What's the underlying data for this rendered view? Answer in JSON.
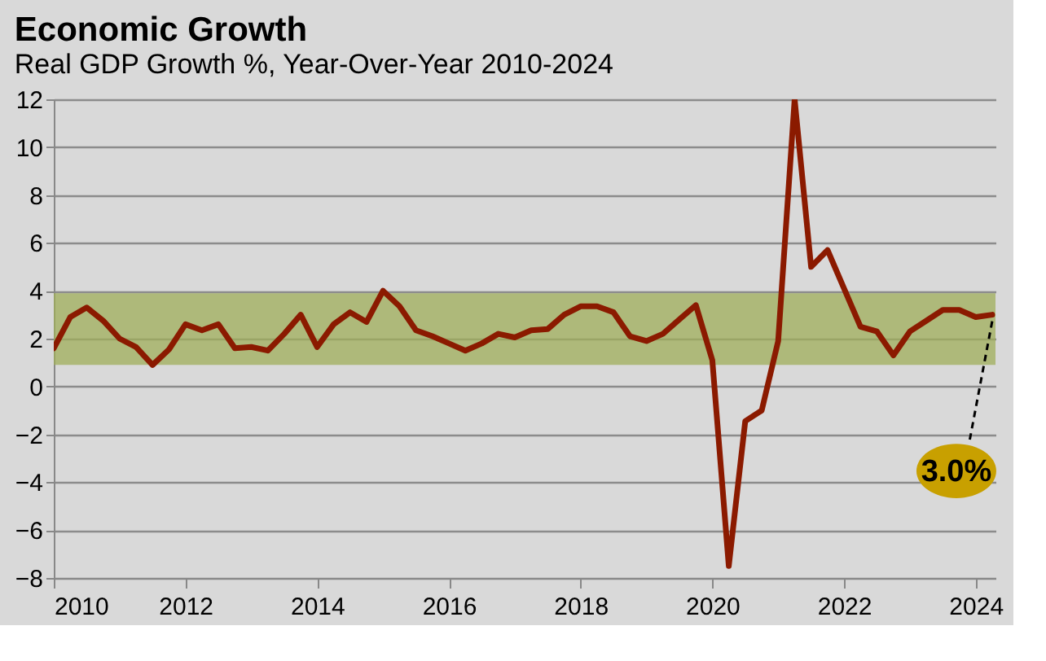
{
  "chart_data": {
    "type": "line",
    "title": "Economic Growth",
    "subtitle": "Real GDP Growth %, Year-Over-Year 2010-2024",
    "x": [
      2010.0,
      2010.25,
      2010.5,
      2010.75,
      2011.0,
      2011.25,
      2011.5,
      2011.75,
      2012.0,
      2012.25,
      2012.5,
      2012.75,
      2013.0,
      2013.25,
      2013.5,
      2013.75,
      2014.0,
      2014.25,
      2014.5,
      2014.75,
      2015.0,
      2015.25,
      2015.5,
      2015.75,
      2016.0,
      2016.25,
      2016.5,
      2016.75,
      2017.0,
      2017.25,
      2017.5,
      2017.75,
      2018.0,
      2018.25,
      2018.5,
      2018.75,
      2019.0,
      2019.25,
      2019.5,
      2019.75,
      2020.0,
      2020.25,
      2020.5,
      2020.75,
      2021.0,
      2021.25,
      2021.5,
      2021.75,
      2022.0,
      2022.25,
      2022.5,
      2022.75,
      2023.0,
      2023.25,
      2023.5,
      2023.75,
      2024.0,
      2024.25
    ],
    "values": [
      1.6,
      2.9,
      3.3,
      2.75,
      2.0,
      1.65,
      0.9,
      1.55,
      2.6,
      2.35,
      2.6,
      1.6,
      1.65,
      1.5,
      2.2,
      3.0,
      1.65,
      2.6,
      3.1,
      2.7,
      4.0,
      3.35,
      2.35,
      2.1,
      1.8,
      1.5,
      1.8,
      2.2,
      2.05,
      2.35,
      2.4,
      3.0,
      3.35,
      3.35,
      3.1,
      2.1,
      1.9,
      2.2,
      2.8,
      3.4,
      1.1,
      -7.5,
      -1.45,
      -1.0,
      1.9,
      12.0,
      5.0,
      5.7,
      4.1,
      2.5,
      2.3,
      1.3,
      2.3,
      2.75,
      3.2,
      3.2,
      2.9,
      3.0
    ],
    "color": "#8b1a00",
    "xlim": [
      2010,
      2024.3
    ],
    "xticks": [
      2010,
      2012,
      2014,
      2016,
      2018,
      2020,
      2022,
      2024
    ],
    "ylim": [
      -8,
      12
    ],
    "yticks": [
      -8,
      -6,
      -4,
      -2,
      0,
      2,
      4,
      6,
      8,
      10,
      12
    ],
    "grid": "y",
    "line_style": "solid",
    "marker": "none",
    "bands": [
      {
        "axis": "y",
        "from": 0.9,
        "to": 3.9,
        "color": "#9fae59"
      }
    ],
    "annotations": [
      {
        "text": "3.0%",
        "x": 2024.25,
        "y": 3.0
      }
    ]
  }
}
